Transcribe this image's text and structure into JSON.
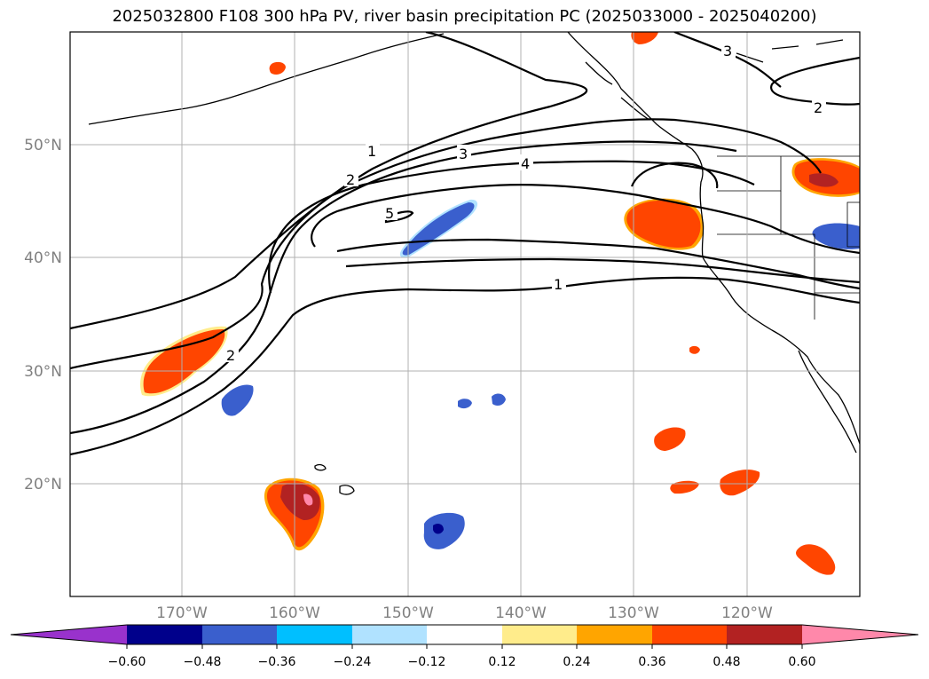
{
  "title": "2025032800 F108 300 hPa PV, river basin precipitation PC (2025033000 - 2025040200)",
  "lat_labels": [
    "50°N",
    "40°N",
    "30°N",
    "20°N"
  ],
  "lon_labels": [
    "170°W",
    "160°W",
    "150°W",
    "140°W",
    "130°W",
    "120°W"
  ],
  "contour_labels": [
    "1",
    "2",
    "3",
    "4",
    "5",
    "1",
    "2",
    "3",
    "2"
  ],
  "colorbar": {
    "ticks": [
      "−0.60",
      "−0.48",
      "−0.36",
      "−0.24",
      "−0.12",
      "0.12",
      "0.24",
      "0.36",
      "0.48",
      "0.60"
    ],
    "colors": [
      "#9932cc",
      "#00008b",
      "#3a5fcd",
      "#00bfff",
      "#b0e2ff",
      "#ffffff",
      "#ffec8b",
      "#ffa500",
      "#ff4500",
      "#b22222",
      "#ff88aa"
    ]
  }
}
